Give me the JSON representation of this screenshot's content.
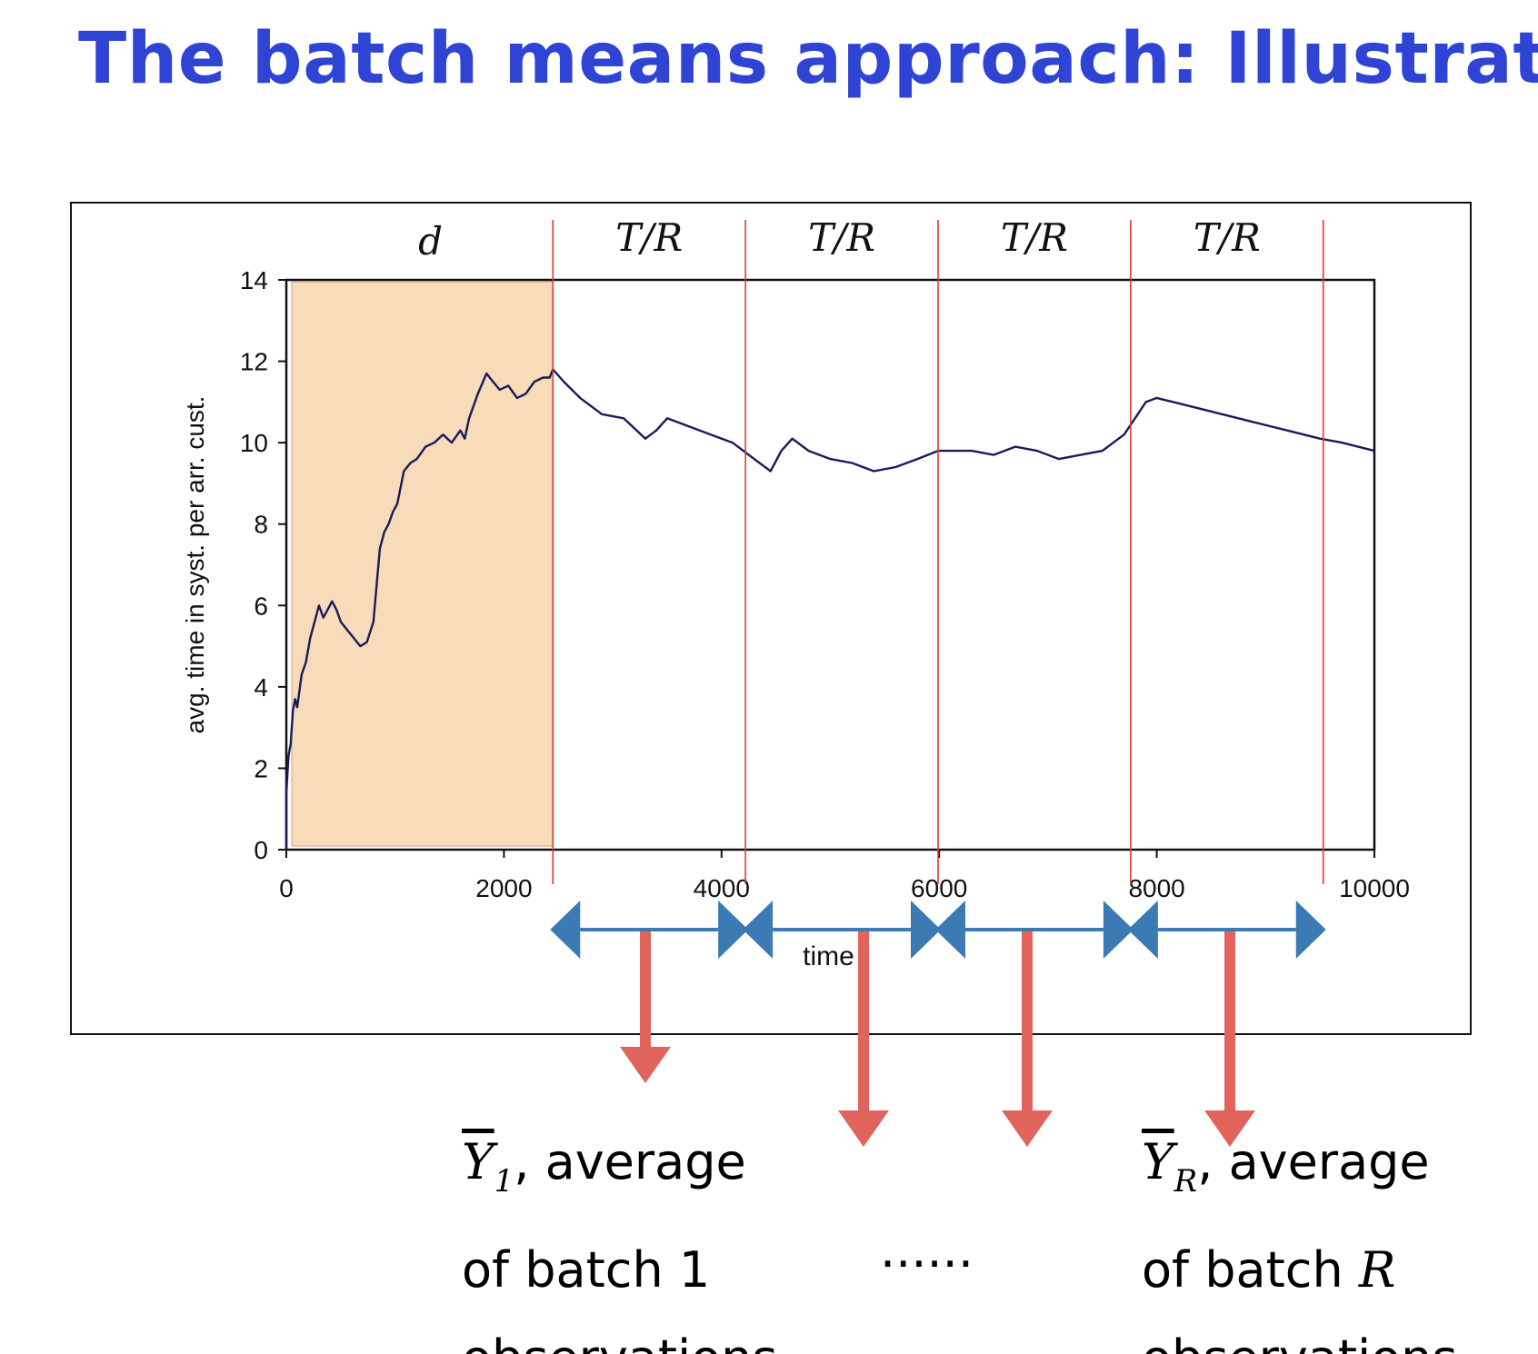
{
  "title": "The batch means approach: Illustration",
  "colors": {
    "title": "#2f43d4",
    "warmup_fill": "#f8dbb8",
    "series_line": "#1a1a5e",
    "batch_lines": "#e23a2a",
    "batch_arrows": "#3c7ab3",
    "down_arrows": "#e0645c"
  },
  "chart_data": {
    "type": "line",
    "xlabel": "time",
    "ylabel": "avg. time in syst. per arr. cust.",
    "xlim": [
      0,
      10000
    ],
    "ylim": [
      0,
      14
    ],
    "xticks": [
      "0",
      "2000",
      "4000",
      "6000",
      "8000",
      "10000"
    ],
    "yticks": [
      "0",
      "2",
      "4",
      "6",
      "8",
      "10",
      "12",
      "14"
    ],
    "grid": false,
    "warmup_region": {
      "x": [
        0,
        2450
      ],
      "label": "d"
    },
    "batch_boundaries": [
      2450,
      4220,
      5990,
      7760,
      9530
    ],
    "batch_labels": [
      "T/R",
      "T/R",
      "T/R",
      "T/R"
    ],
    "series": [
      {
        "x": [
          0,
          20,
          40,
          60,
          80,
          100,
          140,
          180,
          220,
          260,
          300,
          340,
          380,
          420,
          460,
          500,
          560,
          620,
          680,
          740,
          800,
          860,
          900,
          940,
          980,
          1020,
          1080,
          1140,
          1200,
          1280,
          1360,
          1440,
          1520,
          1600,
          1640,
          1680,
          1760,
          1840,
          1900,
          1960,
          2040,
          2120,
          2200,
          2280,
          2360,
          2420,
          2450,
          2550,
          2700,
          2900,
          3100,
          3300,
          3400,
          3500,
          3700,
          3900,
          4100,
          4300,
          4450,
          4550,
          4650,
          4800,
          5000,
          5200,
          5400,
          5600,
          5800,
          5990,
          6100,
          6300,
          6500,
          6700,
          6900,
          7100,
          7300,
          7500,
          7700,
          7800,
          7900,
          8000,
          8300,
          8600,
          8900,
          9200,
          9500,
          9700,
          10000
        ],
        "values": [
          1.4,
          2.3,
          2.6,
          3.4,
          3.7,
          3.5,
          4.3,
          4.6,
          5.2,
          5.6,
          6.0,
          5.7,
          5.9,
          6.1,
          5.9,
          5.6,
          5.4,
          5.2,
          5.0,
          5.1,
          5.6,
          7.4,
          7.8,
          8.0,
          8.3,
          8.5,
          9.3,
          9.5,
          9.6,
          9.9,
          10.0,
          10.2,
          10.0,
          10.3,
          10.1,
          10.6,
          11.2,
          11.7,
          11.5,
          11.3,
          11.4,
          11.1,
          11.2,
          11.5,
          11.6,
          11.6,
          11.8,
          11.5,
          11.1,
          10.7,
          10.6,
          10.1,
          10.3,
          10.6,
          10.4,
          10.2,
          10.0,
          9.6,
          9.3,
          9.8,
          10.1,
          9.8,
          9.6,
          9.5,
          9.3,
          9.4,
          9.6,
          9.8,
          9.8,
          9.8,
          9.7,
          9.9,
          9.8,
          9.6,
          9.7,
          9.8,
          10.2,
          10.6,
          11.0,
          11.1,
          10.9,
          10.7,
          10.5,
          10.3,
          10.1,
          10.0,
          9.8
        ]
      }
    ]
  },
  "batch_arrows_count": 4,
  "captions": {
    "first": {
      "symbol": "Y",
      "subscript": "1",
      "text1": ", average",
      "line2_prefix": "of batch ",
      "line2_value": "1",
      "line3": "observations"
    },
    "middle": "......",
    "last": {
      "symbol": "Y",
      "subscript": "R",
      "text1": ", average",
      "line2_prefix": "of batch ",
      "line2_value": "R",
      "line3": "observations"
    }
  }
}
